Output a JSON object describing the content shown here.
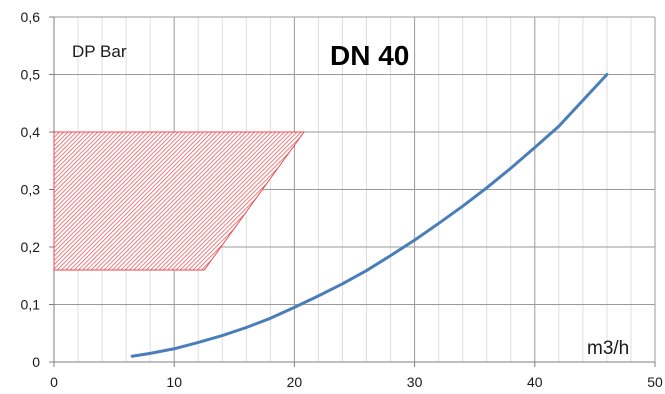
{
  "chart_data": {
    "type": "line",
    "title": "DN 40",
    "xlabel": "m3/h",
    "ylabel": "DP Bar",
    "xlim": [
      0,
      50
    ],
    "ylim": [
      0,
      0.6
    ],
    "x_ticks": [
      0,
      10,
      20,
      30,
      40,
      50
    ],
    "x_tick_labels": [
      "0",
      "10",
      "20",
      "30",
      "40",
      "50"
    ],
    "y_ticks": [
      0,
      0.1,
      0.2,
      0.3,
      0.4,
      0.5,
      0.6
    ],
    "y_tick_labels": [
      "0",
      "0,1",
      "0,2",
      "0,3",
      "0,4",
      "0,5",
      "0,6"
    ],
    "grid": true,
    "minor_x_step": 2,
    "series": [
      {
        "color": "#4a7ebb",
        "x": [
          6.5,
          8,
          10,
          12,
          14,
          16,
          18,
          20,
          22,
          24,
          26,
          28,
          30,
          32,
          34,
          36,
          38,
          40,
          42,
          44,
          46
        ],
        "y": [
          0.01,
          0.015,
          0.023,
          0.034,
          0.046,
          0.06,
          0.076,
          0.095,
          0.115,
          0.136,
          0.159,
          0.185,
          0.212,
          0.241,
          0.271,
          0.303,
          0.337,
          0.373,
          0.41,
          0.455,
          0.5
        ]
      }
    ],
    "shaded_region": {
      "color": "#e8484d",
      "pattern": "diagonal-hatch",
      "polygon": [
        [
          0,
          0.4
        ],
        [
          20.8,
          0.4
        ],
        [
          12.5,
          0.16
        ],
        [
          0,
          0.16
        ]
      ]
    }
  }
}
